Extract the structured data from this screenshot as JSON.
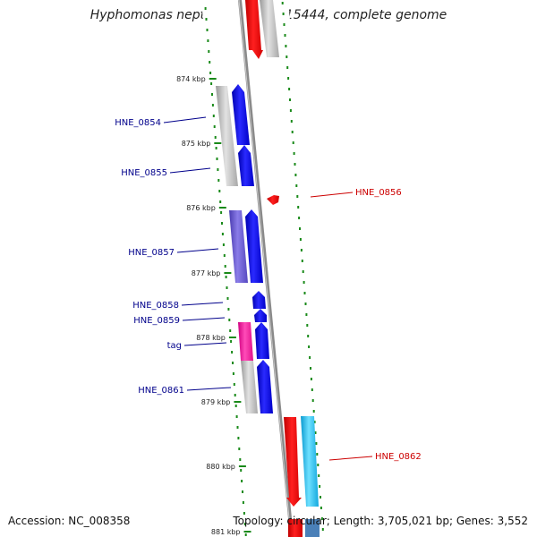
{
  "title": "Hyphomonas neptunium ATCC 15444, complete genome",
  "footer": {
    "accession": "Accession: NC_008358",
    "topology": "Topology: circular; Length: 3,705,021 bp; Genes: 3,552"
  },
  "colors": {
    "backbone": "#8a8a8a",
    "tick": "#1a8a1a",
    "forward_gene": "#0000ee",
    "reverse_gene": "#ee0000",
    "label_forward": "#00008b",
    "label_reverse": "#cc0000",
    "gray_gene": "#bdbdbd",
    "violet_gene": "#7060d0",
    "magenta_gene": "#ff1aa0",
    "cyan_gene": "#19c3f0"
  },
  "scale_labels": [
    "874 kbp",
    "875 kbp",
    "876 kbp",
    "877 kbp",
    "878 kbp",
    "879 kbp",
    "880 kbp",
    "881 kbp"
  ],
  "gene_labels": [
    {
      "name": "HNE_0854",
      "strand": "forward"
    },
    {
      "name": "HNE_0855",
      "strand": "forward"
    },
    {
      "name": "HNE_0856",
      "strand": "reverse"
    },
    {
      "name": "HNE_0857",
      "strand": "forward"
    },
    {
      "name": "HNE_0858",
      "strand": "forward"
    },
    {
      "name": "HNE_0859",
      "strand": "forward"
    },
    {
      "name": "tag",
      "strand": "forward"
    },
    {
      "name": "HNE_0861",
      "strand": "forward"
    },
    {
      "name": "HNE_0862",
      "strand": "reverse"
    }
  ]
}
